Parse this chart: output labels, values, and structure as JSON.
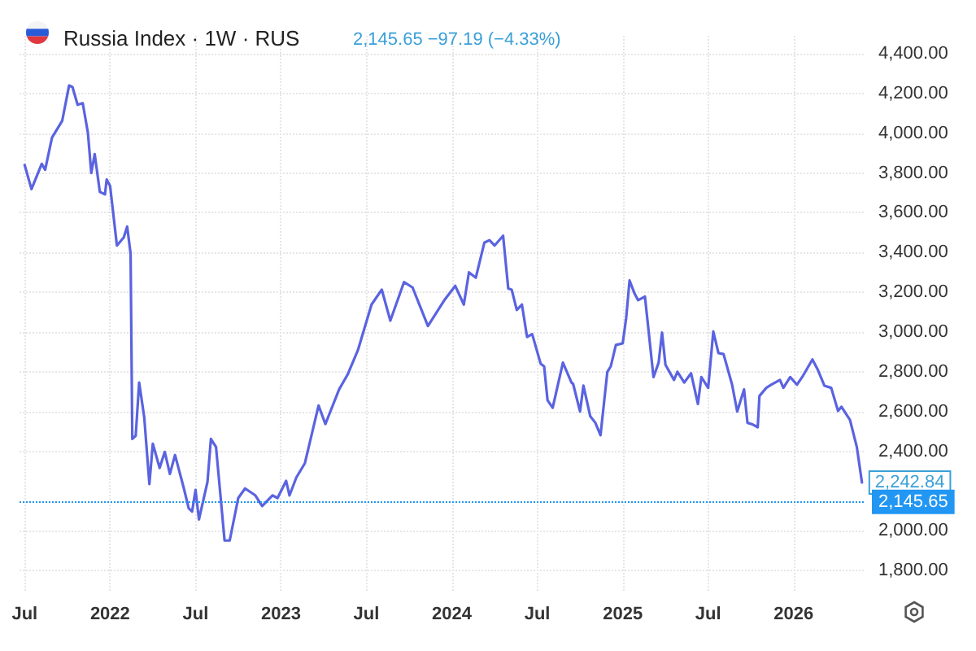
{
  "chart_data": {
    "type": "line",
    "title": "Russia Index · 1W · RUS",
    "subtitle": "2,145.65 −97.19 (−4.33%)",
    "x": [
      2021.5,
      2021.54,
      2021.6,
      2021.62,
      2021.66,
      2021.72,
      2021.76,
      2021.78,
      2021.81,
      2021.84,
      2021.87,
      2021.89,
      2021.91,
      2021.94,
      2021.97,
      2021.98,
      2022.0,
      2022.04,
      2022.08,
      2022.1,
      2022.12,
      2022.13,
      2022.15,
      2022.17,
      2022.2,
      2022.23,
      2022.25,
      2022.29,
      2022.32,
      2022.35,
      2022.38,
      2022.43,
      2022.46,
      2022.48,
      2022.5,
      2022.52,
      2022.57,
      2022.59,
      2022.62,
      2022.67,
      2022.7,
      2022.75,
      2022.79,
      2022.85,
      2022.89,
      2022.95,
      2022.98,
      2023.03,
      2023.05,
      2023.09,
      2023.14,
      2023.22,
      2023.26,
      2023.34,
      2023.39,
      2023.45,
      2023.53,
      2023.59,
      2023.64,
      2023.72,
      2023.77,
      2023.86,
      2023.96,
      2024.02,
      2024.07,
      2024.1,
      2024.14,
      2024.19,
      2024.22,
      2024.25,
      2024.3,
      2024.33,
      2024.35,
      2024.38,
      2024.41,
      2024.44,
      2024.47,
      2024.52,
      2024.54,
      2024.56,
      2024.59,
      2024.65,
      2024.7,
      2024.71,
      2024.75,
      2024.77,
      2024.81,
      2024.84,
      2024.87,
      2024.91,
      2024.93,
      2024.96,
      2025.0,
      2025.02,
      2025.04,
      2025.07,
      2025.09,
      2025.13,
      2025.18,
      2025.21,
      2025.23,
      2025.25,
      2025.3,
      2025.32,
      2025.36,
      2025.4,
      2025.44,
      2025.46,
      2025.5,
      2025.53,
      2025.56,
      2025.59,
      2025.64,
      2025.67,
      2025.71,
      2025.73,
      2025.76,
      2025.79,
      2025.8,
      2025.84,
      2025.87,
      2025.92,
      2025.94,
      2025.98,
      2026.02,
      2026.05,
      2026.11,
      2026.14,
      2026.18,
      2026.22,
      2026.26,
      2026.28,
      2026.33,
      2026.37,
      2026.4
    ],
    "series": [
      {
        "color": "#5a63e0",
        "values": [
          3840,
          3719,
          3846,
          3816,
          3978,
          4063,
          4240,
          4232,
          4143,
          4151,
          4003,
          3800,
          3895,
          3705,
          3692,
          3767,
          3735,
          3435,
          3476,
          3530,
          3394,
          2462,
          2478,
          2746,
          2570,
          2235,
          2438,
          2316,
          2397,
          2286,
          2381,
          2219,
          2113,
          2097,
          2205,
          2057,
          2246,
          2462,
          2421,
          1951,
          1951,
          2165,
          2213,
          2178,
          2124,
          2178,
          2165,
          2251,
          2178,
          2268,
          2340,
          2630,
          2537,
          2711,
          2786,
          2908,
          3138,
          3213,
          3057,
          3251,
          3224,
          3030,
          3165,
          3232,
          3138,
          3300,
          3273,
          3449,
          3462,
          3435,
          3484,
          3219,
          3213,
          3111,
          3138,
          2975,
          2989,
          2840,
          2827,
          2657,
          2619,
          2846,
          2746,
          2738,
          2600,
          2730,
          2576,
          2543,
          2481,
          2800,
          2827,
          2935,
          2943,
          3070,
          3259,
          3192,
          3160,
          3178,
          2773,
          2846,
          2997,
          2835,
          2759,
          2800,
          2746,
          2792,
          2638,
          2773,
          2719,
          3003,
          2894,
          2889,
          2735,
          2600,
          2711,
          2543,
          2535,
          2521,
          2678,
          2719,
          2735,
          2759,
          2719,
          2773,
          2735,
          2773,
          2862,
          2813,
          2730,
          2719,
          2603,
          2624,
          2557,
          2421,
          2242.84
        ]
      }
    ],
    "xlim": [
      2021.47,
      2026.42
    ],
    "xticks": [
      {
        "value": 2021.5,
        "label": "Jul"
      },
      {
        "value": 2022,
        "label": "2022"
      },
      {
        "value": 2022.5,
        "label": "Jul"
      },
      {
        "value": 2023,
        "label": "2023"
      },
      {
        "value": 2023.5,
        "label": "Jul"
      },
      {
        "value": 2024,
        "label": "2024"
      },
      {
        "value": 2024.5,
        "label": "Jul"
      },
      {
        "value": 2025,
        "label": "2025"
      },
      {
        "value": 2025.5,
        "label": "Jul"
      },
      {
        "value": 2026,
        "label": "2026"
      }
    ],
    "ylim": [
      1690,
      4490
    ],
    "yticks": [
      {
        "value": 1800,
        "label": "1,800.00"
      },
      {
        "value": 2000,
        "label": "2,000.00"
      },
      {
        "value": 2400,
        "label": "2,400.00"
      },
      {
        "value": 2600,
        "label": "2,600.00"
      },
      {
        "value": 2800,
        "label": "2,800.00"
      },
      {
        "value": 3000,
        "label": "3,000.00"
      },
      {
        "value": 3200,
        "label": "3,200.00"
      },
      {
        "value": 3400,
        "label": "3,400.00"
      },
      {
        "value": 3600,
        "label": "3,600.00"
      },
      {
        "value": 3800,
        "label": "3,800.00"
      },
      {
        "value": 4000,
        "label": "4,000.00"
      },
      {
        "value": 4200,
        "label": "4,200.00"
      },
      {
        "value": 4400,
        "label": "4,400.00"
      }
    ],
    "ref_lines": [
      {
        "axis": "y",
        "value": 2145.65,
        "label": "2,145.65",
        "color": "#2196f3",
        "line_style": "dotted"
      }
    ],
    "annotations": [
      {
        "text": "2,242.84",
        "x": 2026.4,
        "y": 2242.84
      }
    ],
    "grid": true,
    "marker": "none",
    "line_style": "solid"
  }
}
